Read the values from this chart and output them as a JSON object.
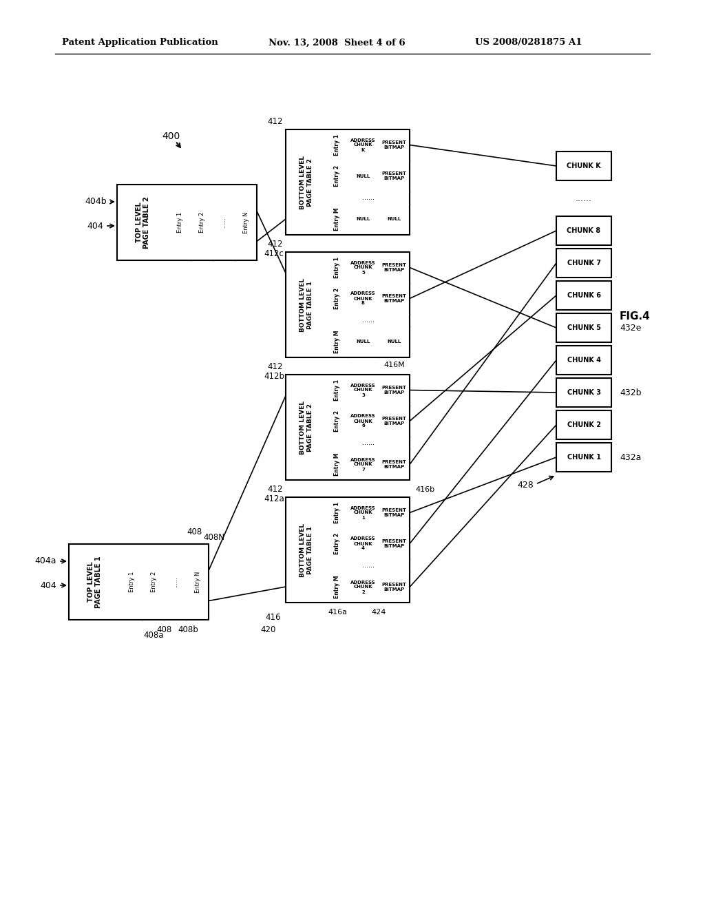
{
  "title_left": "Patent Application Publication",
  "title_mid": "Nov. 13, 2008  Sheet 4 of 6",
  "title_right": "US 2008/0281875 A1",
  "bg_color": "#ffffff",
  "fig_label": "FIG.4"
}
